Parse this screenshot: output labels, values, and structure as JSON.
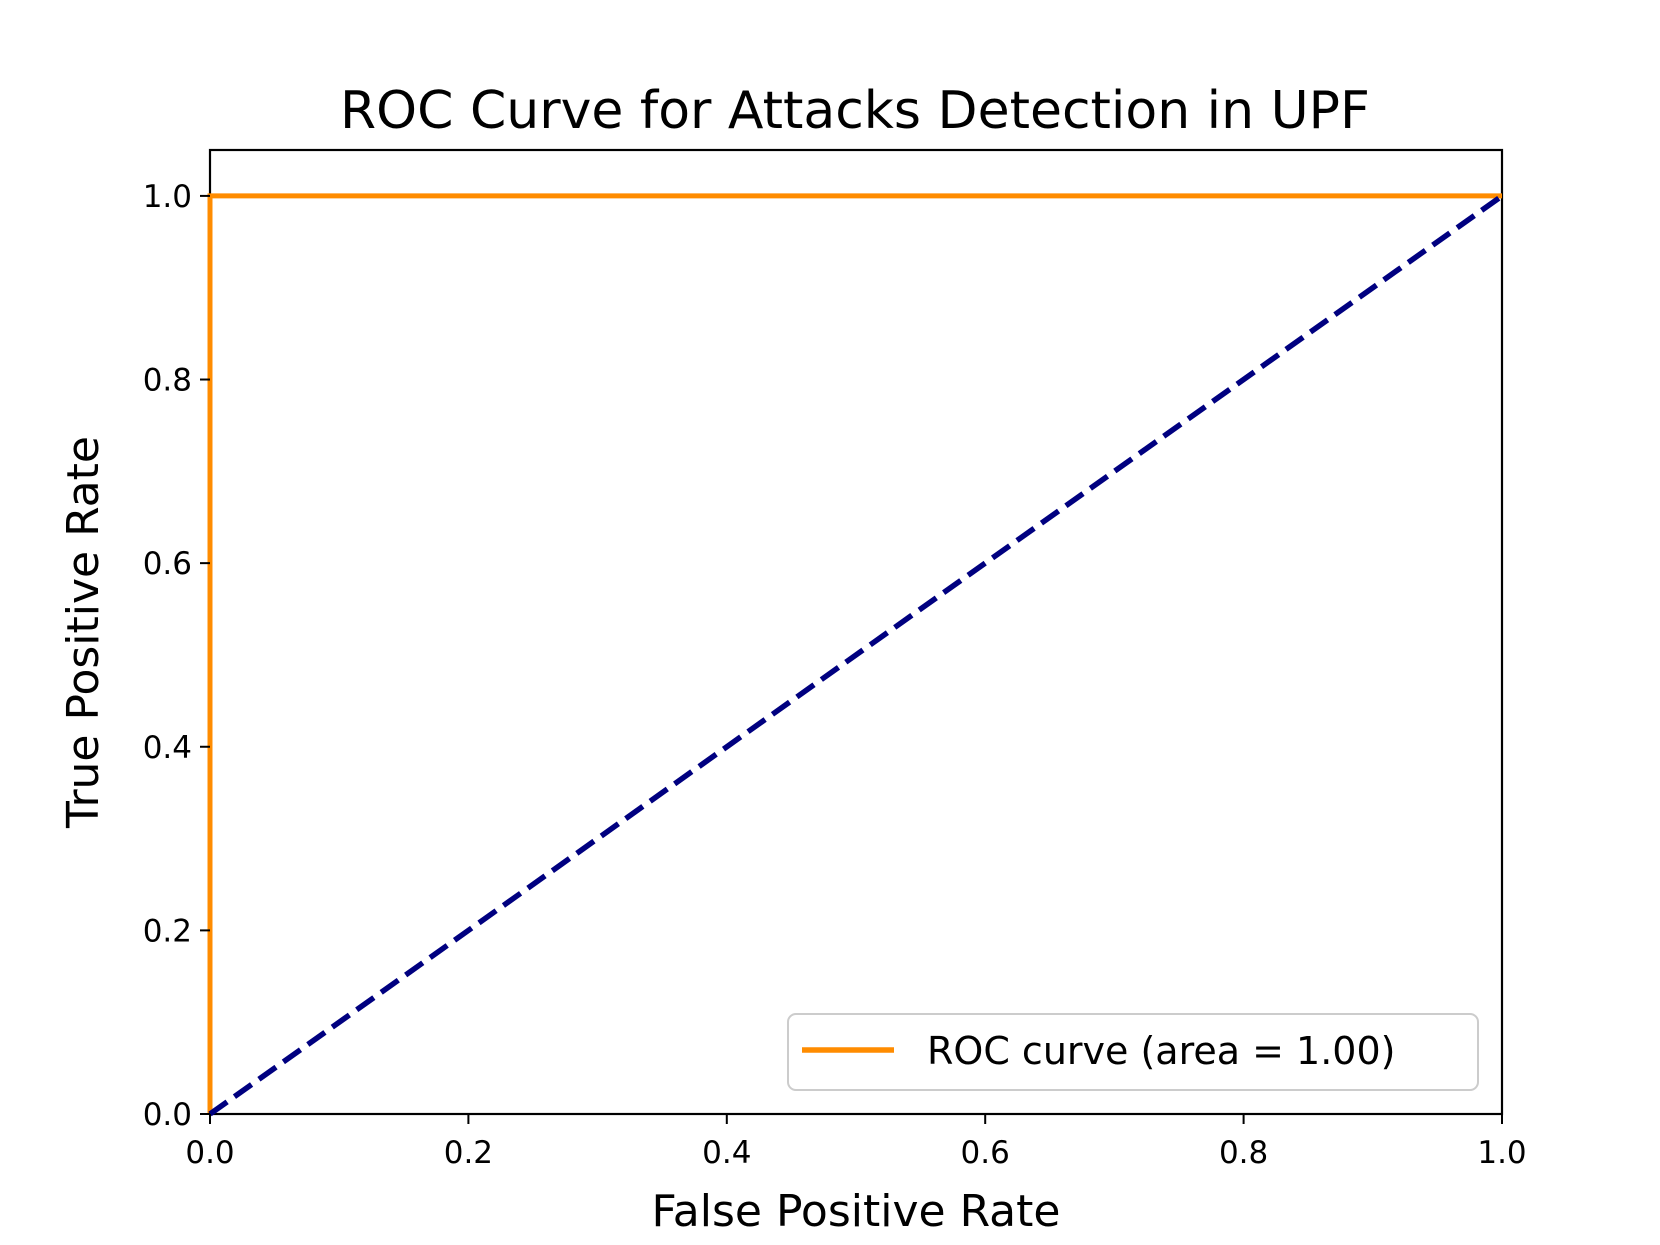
{
  "chart_data": {
    "type": "line",
    "title": "ROC Curve for Attacks Detection in UPF",
    "xlabel": "False Positive Rate",
    "ylabel": "True Positive Rate",
    "xlim": [
      0.0,
      1.0
    ],
    "ylim": [
      0.0,
      1.05
    ],
    "x_ticks": [
      "0.0",
      "0.2",
      "0.4",
      "0.6",
      "0.8",
      "1.0"
    ],
    "y_ticks": [
      "0.0",
      "0.2",
      "0.4",
      "0.6",
      "0.8",
      "1.0"
    ],
    "grid": false,
    "legend_position": "lower-right",
    "series": [
      {
        "name": "ROC curve (area = 1.00)",
        "color": "#ff8c00",
        "style": "solid",
        "x": [
          0.0,
          0.0,
          1.0
        ],
        "y": [
          0.0,
          1.0,
          1.0
        ]
      },
      {
        "color": "#000080",
        "style": "dashed",
        "x": [
          0.0,
          1.0
        ],
        "y": [
          0.0,
          1.0
        ]
      }
    ]
  }
}
